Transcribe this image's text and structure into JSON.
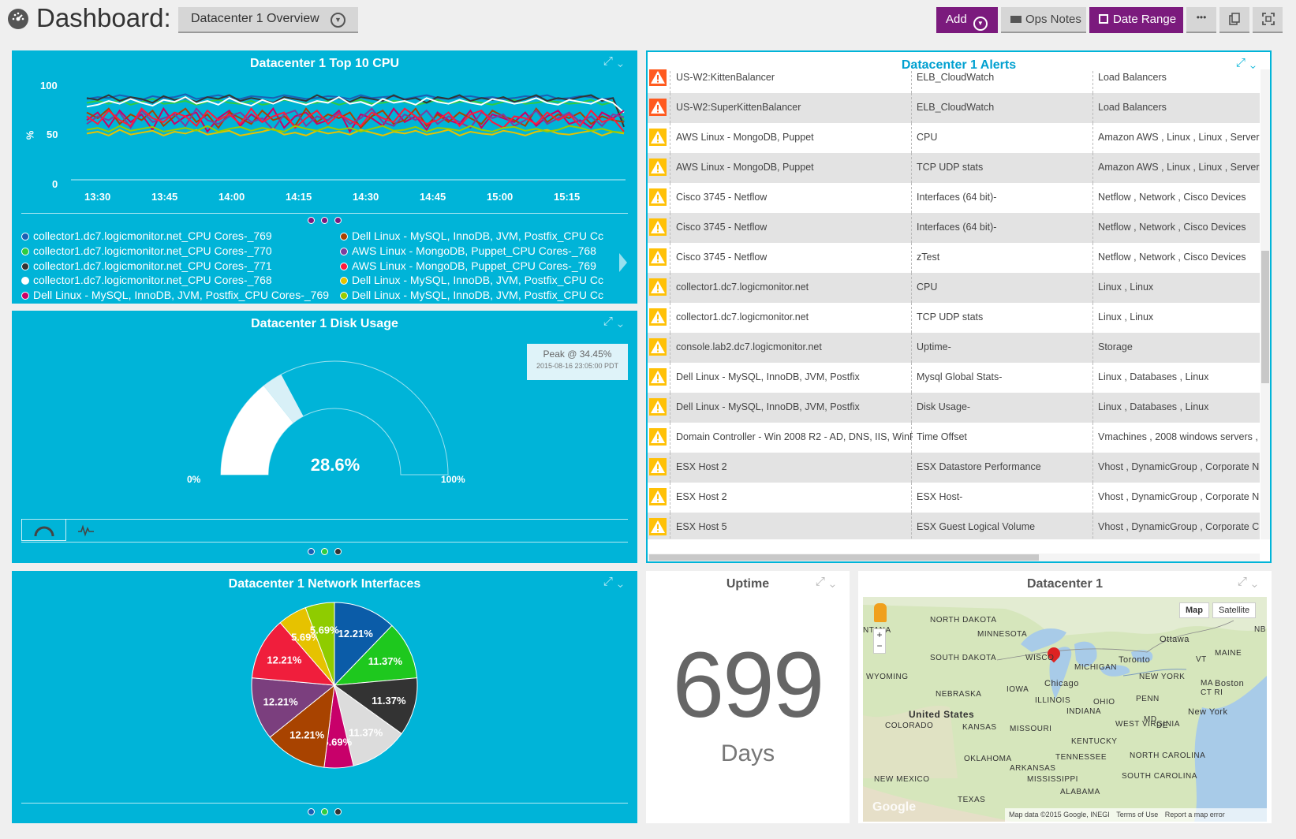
{
  "header": {
    "title": "Dashboard:",
    "dashboard_select": "Datacenter 1 Overview",
    "buttons": {
      "add": "Add",
      "ops_notes": "Ops Notes",
      "date_range": "Date Range",
      "more": "•••"
    }
  },
  "cpu_widget": {
    "title": "Datacenter 1 Top 10 CPU",
    "y_unit": "%",
    "legend_left": [
      {
        "label": "collector1.dc7.logicmonitor.net_CPU Cores-_769",
        "color": "#1a5fb4"
      },
      {
        "label": "collector1.dc7.logicmonitor.net_CPU Cores-_770",
        "color": "#2ecc40"
      },
      {
        "label": "collector1.dc7.logicmonitor.net_CPU Cores-_771",
        "color": "#333333"
      },
      {
        "label": "collector1.dc7.logicmonitor.net_CPU Cores-_768",
        "color": "#ffffff"
      },
      {
        "label": "Dell Linux - MySQL, InnoDB, JVM, Postfix_CPU Cores-_769",
        "color": "#cc0066"
      }
    ],
    "legend_right": [
      {
        "label": "Dell Linux - MySQL, InnoDB, JVM, Postfix_CPU Cc",
        "color": "#a84300"
      },
      {
        "label": "AWS Linux - MongoDB, Puppet_CPU Cores-_768",
        "color": "#7b3f9e"
      },
      {
        "label": "AWS Linux - MongoDB, Puppet_CPU Cores-_769",
        "color": "#ff1a3c"
      },
      {
        "label": "Dell Linux - MySQL, InnoDB, JVM, Postfix_CPU Cc",
        "color": "#e6c200"
      },
      {
        "label": "Dell Linux - MySQL, InnoDB, JVM, Postfix_CPU Cc",
        "color": "#99cc00"
      }
    ]
  },
  "disk_widget": {
    "title": "Datacenter 1 Disk Usage",
    "value": "28.6%",
    "value_fraction": 0.286,
    "peak_fraction": 0.3445,
    "min_label": "0%",
    "max_label": "100%",
    "tooltip_peak": "Peak @ 34.45%",
    "tooltip_time": "2015-08-16 23:05:00 PDT"
  },
  "network_widget": {
    "title": "Datacenter 1 Network Interfaces"
  },
  "alerts_widget": {
    "title": "Datacenter 1 Alerts",
    "rows": [
      {
        "severity": "critical",
        "host": "US-W2:KittenBalancer",
        "datasource": "ELB_CloudWatch",
        "groups": "Load Balancers"
      },
      {
        "severity": "critical",
        "host": "US-W2:SuperKittenBalancer",
        "datasource": "ELB_CloudWatch",
        "groups": "Load Balancers"
      },
      {
        "severity": "warning",
        "host": "AWS Linux - MongoDB, Puppet",
        "datasource": "CPU",
        "groups": "Amazon AWS , Linux , Linux , Servers"
      },
      {
        "severity": "warning",
        "host": "AWS Linux - MongoDB, Puppet",
        "datasource": "TCP UDP stats",
        "groups": "Amazon AWS , Linux , Linux , Servers"
      },
      {
        "severity": "warning",
        "host": "Cisco 3745 - Netflow",
        "datasource": "Interfaces (64 bit)-",
        "groups": "Netflow , Network , Cisco Devices"
      },
      {
        "severity": "warning",
        "host": "Cisco 3745 - Netflow",
        "datasource": "Interfaces (64 bit)-",
        "groups": "Netflow , Network , Cisco Devices"
      },
      {
        "severity": "warning",
        "host": "Cisco 3745 - Netflow",
        "datasource": "zTest",
        "groups": "Netflow , Network , Cisco Devices"
      },
      {
        "severity": "warning",
        "host": "collector1.dc7.logicmonitor.net",
        "datasource": "CPU",
        "groups": "Linux , Linux"
      },
      {
        "severity": "warning",
        "host": "collector1.dc7.logicmonitor.net",
        "datasource": "TCP UDP stats",
        "groups": "Linux , Linux"
      },
      {
        "severity": "warning",
        "host": "console.lab2.dc7.logicmonitor.net",
        "datasource": "Uptime-",
        "groups": "Storage"
      },
      {
        "severity": "warning",
        "host": "Dell Linux - MySQL, InnoDB, JVM, Postfix",
        "datasource": "Mysql Global Stats-",
        "groups": "Linux , Databases , Linux"
      },
      {
        "severity": "warning",
        "host": "Dell Linux - MySQL, InnoDB, JVM, Postfix",
        "datasource": "Disk Usage-",
        "groups": "Linux , Databases , Linux"
      },
      {
        "severity": "warning",
        "host": "Domain Controller - Win 2008 R2 - AD, DNS, IIS, WinF",
        "datasource": "Time Offset",
        "groups": "Vmachines , 2008 windows servers ,"
      },
      {
        "severity": "warning",
        "host": "ESX Host 2",
        "datasource": "ESX Datastore Performance",
        "groups": "Vhost , DynamicGroup , Corporate N"
      },
      {
        "severity": "warning",
        "host": "ESX Host 2",
        "datasource": "ESX Host-",
        "groups": "Vhost , DynamicGroup , Corporate N"
      },
      {
        "severity": "warning",
        "host": "ESX Host 5",
        "datasource": "ESX Guest Logical Volume",
        "groups": "Vhost , DynamicGroup , Corporate C"
      }
    ]
  },
  "uptime_widget": {
    "title": "Uptime",
    "value": "699",
    "unit": "Days"
  },
  "map_widget": {
    "title": "Datacenter 1",
    "map_btn": "Map",
    "satellite_btn": "Satellite",
    "footer_data": "Map data ©2015 Google, INEGI",
    "footer_terms": "Terms of Use",
    "footer_report": "Report a map error",
    "google": "Google",
    "labels": {
      "north_dakota": "NORTH DAKOTA",
      "south_dakota": "SOUTH DAKOTA",
      "minnesota": "MINNESOTA",
      "wyoming": "WYOMING",
      "nebraska": "NEBRASKA",
      "iowa": "IOWA",
      "illinois": "ILLINOIS",
      "wisconsin": "WISCO",
      "michigan": "MICHIGAN",
      "chicago": "Chicago",
      "united_states": "United States",
      "colorado": "COLORADO",
      "kansas": "KANSAS",
      "missouri": "MISSOURI",
      "indiana": "INDIANA",
      "ohio": "OHIO",
      "penn": "PENN",
      "new_york": "NEW YORK",
      "new_york_city": "New York",
      "toronto": "Toronto",
      "ottawa": "Ottawa",
      "boston": "Boston",
      "maine": "MAINE",
      "vt": "VT",
      "ma": "MA",
      "ct_ri": "CT RI",
      "nb": "NB",
      "west_virginia": "WEST VIRGINIA",
      "kentucky": "KENTUCKY",
      "md": "MD",
      "de": "DE",
      "north_carolina": "NORTH CAROLINA",
      "south_carolina": "SOUTH CAROLINA",
      "tennessee": "TENNESSEE",
      "oklahoma": "OKLAHOMA",
      "arkansas": "ARKANSAS",
      "mississippi": "MISSISSIPPI",
      "alabama": "ALABAMA",
      "new_mexico": "NEW MEXICO",
      "texas": "TEXAS",
      "montana": "NTANA"
    }
  },
  "chart_data": [
    {
      "type": "line",
      "title": "Datacenter 1 Top 10 CPU",
      "ylabel": "%",
      "ylim": [
        0,
        100
      ],
      "yticks": [
        0,
        50,
        100
      ],
      "xticks": [
        "13:30",
        "13:45",
        "14:00",
        "14:15",
        "14:30",
        "14:45",
        "15:00",
        "15:15"
      ],
      "series": [
        {
          "name": "collector1.dc7.logicmonitor.net_CPU Cores-_769",
          "color": "#1a5fb4",
          "values": [
            84,
            86,
            85,
            88,
            86,
            83,
            87,
            85,
            86,
            89,
            84,
            86,
            88,
            85,
            84,
            87,
            86,
            85,
            88,
            86,
            84,
            85,
            87,
            86,
            84,
            88,
            85,
            86,
            87,
            84,
            86,
            88,
            85,
            84,
            86,
            87,
            85,
            86,
            84,
            85,
            87,
            86,
            88,
            84,
            85,
            87,
            86,
            84,
            85,
            60
          ]
        },
        {
          "name": "collector1.dc7.logicmonitor.net_CPU Cores-_770",
          "color": "#2ecc40",
          "values": [
            80,
            82,
            79,
            83,
            78,
            81,
            84,
            79,
            80,
            82,
            78,
            81,
            83,
            80,
            79,
            82,
            78,
            80,
            83,
            81,
            79,
            80,
            82,
            78,
            81,
            83,
            79,
            80,
            82,
            81,
            78,
            80,
            83,
            79,
            81,
            82,
            80,
            78,
            81,
            83,
            79,
            80,
            82,
            81,
            79,
            80,
            83,
            78,
            81,
            62
          ]
        },
        {
          "name": "collector1.dc7.logicmonitor.net_CPU Cores-_771",
          "color": "#333333",
          "values": [
            85,
            83,
            88,
            82,
            86,
            84,
            80,
            87,
            83,
            85,
            81,
            86,
            84,
            88,
            82,
            85,
            83,
            80,
            86,
            84,
            82,
            88,
            83,
            85,
            81,
            86,
            84,
            82,
            88,
            83,
            85,
            80,
            86,
            84,
            88,
            82,
            85,
            83,
            86,
            81,
            84,
            88,
            82,
            85,
            83,
            86,
            88,
            82,
            85,
            55
          ]
        },
        {
          "name": "collector1.dc7.logicmonitor.net_CPU Cores-_768",
          "color": "#ffffff",
          "values": [
            76,
            78,
            82,
            79,
            84,
            80,
            77,
            83,
            81,
            86,
            79,
            82,
            78,
            85,
            80,
            77,
            83,
            79,
            84,
            81,
            78,
            82,
            80,
            86,
            79,
            81,
            77,
            84,
            80,
            82,
            78,
            85,
            81,
            79,
            83,
            80,
            78,
            84,
            82,
            79,
            81,
            85,
            80,
            78,
            83,
            81,
            79,
            84,
            80,
            70
          ]
        },
        {
          "name": "Dell Linux - MySQL, InnoDB, JVM, Postfix_CPU Cores-_769",
          "color": "#cc0066",
          "values": [
            62,
            70,
            55,
            72,
            60,
            68,
            52,
            74,
            58,
            66,
            70,
            50,
            64,
            72,
            56,
            68,
            60,
            74,
            54,
            66,
            70,
            58,
            62,
            72,
            50,
            68,
            64,
            56,
            74,
            60,
            66,
            52,
            70,
            62,
            58,
            72,
            54,
            68,
            64,
            60,
            70,
            56,
            66,
            72,
            58,
            62,
            54,
            70,
            64,
            72
          ]
        },
        {
          "name": "Dell Linux - MySQL, InnoDB, JVM, Postfix_CPU Cc",
          "color": "#a84300",
          "values": [
            70,
            64,
            74,
            58,
            68,
            62,
            72,
            56,
            66,
            74,
            60,
            68,
            54,
            70,
            64,
            58,
            72,
            62,
            66,
            56,
            74,
            60,
            68,
            64,
            70,
            54,
            66,
            72,
            58,
            62,
            74,
            56,
            68,
            60,
            70,
            64,
            58,
            72,
            66,
            62,
            56,
            74,
            60,
            68,
            64,
            70,
            58,
            66,
            62,
            60
          ]
        },
        {
          "name": "AWS Linux - MongoDB, Puppet_CPU Cores-_768",
          "color": "#7b3f9e",
          "values": [
            58,
            66,
            62,
            70,
            54,
            72,
            60,
            64,
            68,
            56,
            74,
            62,
            58,
            66,
            70,
            60,
            64,
            52,
            68,
            72,
            56,
            66,
            62,
            70,
            58,
            64,
            74,
            60,
            56,
            68,
            62,
            72,
            58,
            66,
            60,
            54,
            70,
            64,
            68,
            56,
            62,
            72,
            58,
            64,
            70,
            60,
            66,
            56,
            68,
            65
          ]
        },
        {
          "name": "AWS Linux - MongoDB, Puppet_CPU Cores-_769",
          "color": "#ff1a3c",
          "values": [
            66,
            58,
            72,
            62,
            56,
            74,
            64,
            60,
            70,
            66,
            56,
            72,
            62,
            68,
            58,
            74,
            60,
            66,
            70,
            54,
            64,
            72,
            58,
            68,
            62,
            56,
            70,
            64,
            60,
            74,
            66,
            58,
            62,
            70,
            56,
            68,
            72,
            60,
            54,
            66,
            64,
            58,
            70,
            62,
            68,
            56,
            72,
            60,
            64,
            50
          ]
        },
        {
          "name": "Dell Linux - MySQL, InnoDB, JVM, Postfix_CPU Cc",
          "color": "#e6c200",
          "values": [
            48,
            50,
            46,
            52,
            47,
            49,
            51,
            46,
            50,
            48,
            52,
            47,
            49,
            51,
            46,
            48,
            50,
            53,
            47,
            49,
            46,
            51,
            48,
            50,
            47,
            52,
            49,
            46,
            50,
            48,
            51,
            47,
            49,
            52,
            46,
            50,
            48,
            47,
            51,
            49,
            46,
            50,
            52,
            48,
            47,
            49,
            51,
            46,
            50,
            48
          ]
        },
        {
          "name": "Dell Linux - MySQL, InnoDB, JVM, Postfix_CPU Cc",
          "color": "#99cc00",
          "values": [
            52,
            54,
            50,
            56,
            51,
            53,
            55,
            50,
            52,
            54,
            51,
            56,
            50,
            53,
            55,
            51,
            54,
            52,
            50,
            56,
            53,
            51,
            55,
            52,
            54,
            50,
            53,
            56,
            51,
            52,
            55,
            50,
            54,
            53,
            51,
            56,
            52,
            50,
            54,
            55,
            51,
            53,
            50,
            52,
            56,
            54,
            51,
            53,
            50,
            49
          ]
        }
      ]
    },
    {
      "type": "pie",
      "title": "Datacenter 1 Network Interfaces",
      "slices": [
        {
          "value": 12.21,
          "label": "12.21%",
          "color": "#0b5ca8"
        },
        {
          "value": 11.37,
          "label": "11.37%",
          "color": "#1ec81e"
        },
        {
          "value": 11.37,
          "label": "11.37%",
          "color": "#333333"
        },
        {
          "value": 11.37,
          "label": "11.37%",
          "color": "#dcdcdc"
        },
        {
          "value": 5.69,
          "label": "5.69%",
          "color": "#c8006a"
        },
        {
          "value": 12.21,
          "label": "12.21%",
          "color": "#a84300"
        },
        {
          "value": 12.21,
          "label": "12.21%",
          "color": "#7b3f7e"
        },
        {
          "value": 12.21,
          "label": "12.21%",
          "color": "#f01e3c"
        },
        {
          "value": 5.69,
          "label": "5.69%",
          "color": "#e6c200"
        },
        {
          "value": 5.69,
          "label": "5.69%",
          "color": "#8fcc00"
        }
      ]
    },
    {
      "type": "gauge",
      "title": "Datacenter 1 Disk Usage",
      "value": 28.6,
      "peak": 34.45,
      "ylim": [
        0,
        100
      ]
    }
  ]
}
